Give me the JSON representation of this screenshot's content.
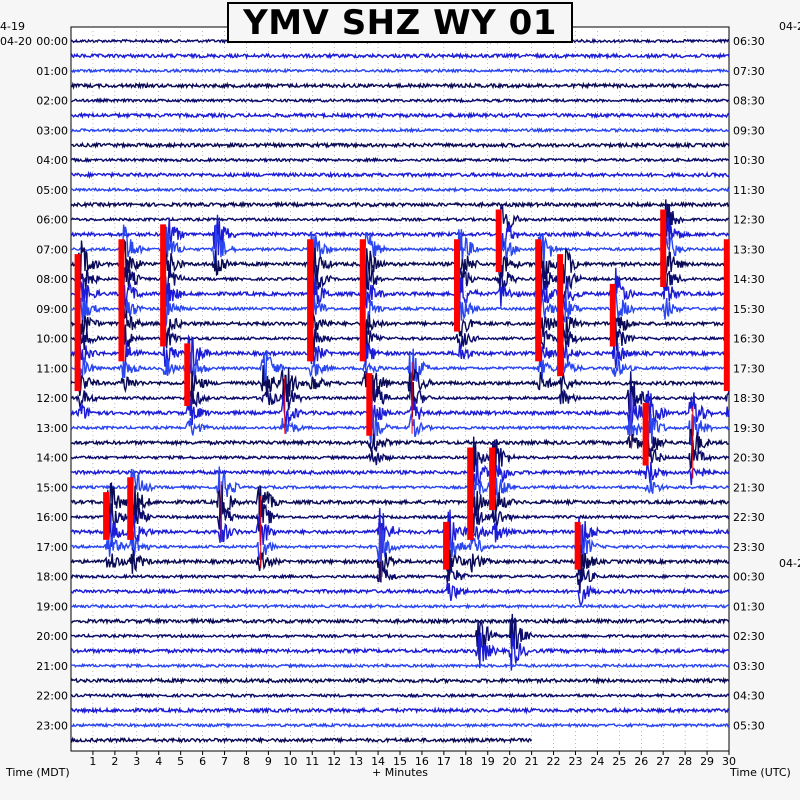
{
  "chart_data": {
    "type": "helicorder",
    "title": "YMV SHZ WY 01",
    "xlabel": "+ Minutes",
    "left_axis_label": "Time (MDT)",
    "right_axis_label": "Time (UTC)",
    "x_ticks": [
      "1",
      "2",
      "3",
      "4",
      "5",
      "6",
      "7",
      "8",
      "9",
      "10",
      "11",
      "12",
      "13",
      "14",
      "15",
      "16",
      "17",
      "18",
      "19",
      "20",
      "21",
      "22",
      "23",
      "24",
      "25",
      "26",
      "27",
      "28",
      "29",
      "30"
    ],
    "xlim": [
      0,
      30
    ],
    "left_date_labels": [
      "4-19",
      "04-20"
    ],
    "right_date_labels": [
      "04-2",
      "04-2"
    ],
    "left_hour_labels": [
      "00:00",
      "01:00",
      "02:00",
      "03:00",
      "04:00",
      "05:00",
      "06:00",
      "07:00",
      "08:00",
      "09:00",
      "10:00",
      "11:00",
      "12:00",
      "13:00",
      "14:00",
      "15:00",
      "16:00",
      "17:00",
      "18:00",
      "19:00",
      "20:00",
      "21:00",
      "22:00",
      "23:00"
    ],
    "right_hour_labels": [
      "06:30",
      "07:30",
      "08:30",
      "09:30",
      "10:30",
      "11:30",
      "12:30",
      "13:30",
      "14:30",
      "15:30",
      "16:30",
      "17:30",
      "18:30",
      "19:30",
      "20:30",
      "21:30",
      "22:30",
      "23:30",
      "00:30",
      "01:30",
      "02:30",
      "03:30",
      "04:30",
      "05:30"
    ],
    "trace_colors": [
      "#0b0b6b",
      "#1c1cd6",
      "#2a46f0",
      "#0a0a55"
    ],
    "clip_color": "#ff0000",
    "rows_per_hour": 2,
    "events": [
      {
        "minute": 0.3,
        "row_start": 15,
        "rows": 11,
        "clipped": true
      },
      {
        "minute": 2.3,
        "row_start": 14,
        "rows": 10,
        "clipped": true
      },
      {
        "minute": 4.2,
        "row_start": 13,
        "rows": 10,
        "clipped": true
      },
      {
        "minute": 10.9,
        "row_start": 14,
        "rows": 10,
        "clipped": true
      },
      {
        "minute": 13.3,
        "row_start": 14,
        "rows": 10,
        "clipped": true
      },
      {
        "minute": 17.6,
        "row_start": 14,
        "rows": 8,
        "clipped": true
      },
      {
        "minute": 19.5,
        "row_start": 12,
        "rows": 6,
        "clipped": true
      },
      {
        "minute": 21.3,
        "row_start": 14,
        "rows": 10,
        "clipped": true
      },
      {
        "minute": 22.3,
        "row_start": 15,
        "rows": 10,
        "clipped": true
      },
      {
        "minute": 27.0,
        "row_start": 12,
        "rows": 7,
        "clipped": true
      },
      {
        "minute": 29.9,
        "row_start": 14,
        "rows": 12,
        "clipped": true
      },
      {
        "minute": 24.7,
        "row_start": 17,
        "rows": 6,
        "clipped": true
      },
      {
        "minute": 26.2,
        "row_start": 25,
        "rows": 6,
        "clipped": true
      },
      {
        "minute": 18.2,
        "row_start": 28,
        "rows": 8,
        "clipped": true
      },
      {
        "minute": 19.2,
        "row_start": 28,
        "rows": 6,
        "clipped": true
      },
      {
        "minute": 2.7,
        "row_start": 30,
        "rows": 6,
        "clipped": true
      },
      {
        "minute": 1.6,
        "row_start": 31,
        "rows": 5,
        "clipped": true
      },
      {
        "minute": 17.1,
        "row_start": 33,
        "rows": 5,
        "clipped": true
      },
      {
        "minute": 23.1,
        "row_start": 33,
        "rows": 5,
        "clipped": true
      },
      {
        "minute": 5.3,
        "row_start": 21,
        "rows": 6,
        "clipped": true
      },
      {
        "minute": 13.6,
        "row_start": 23,
        "rows": 6,
        "clipped": true
      },
      {
        "minute": 9.6,
        "row_start": 23,
        "rows": 4,
        "clipped": false
      },
      {
        "minute": 15.4,
        "row_start": 22,
        "rows": 5,
        "clipped": false
      },
      {
        "minute": 14.0,
        "row_start": 33,
        "rows": 4,
        "clipped": false
      },
      {
        "minute": 8.5,
        "row_start": 31,
        "rows": 5,
        "clipped": false
      },
      {
        "minute": 6.7,
        "row_start": 30,
        "rows": 4,
        "clipped": false
      },
      {
        "minute": 20.0,
        "row_start": 40,
        "rows": 2,
        "clipped": false
      },
      {
        "minute": 18.5,
        "row_start": 40,
        "rows": 2,
        "clipped": false
      },
      {
        "minute": 8.7,
        "row_start": 22,
        "rows": 3,
        "clipped": false
      },
      {
        "minute": 6.5,
        "row_start": 13,
        "rows": 3,
        "clipped": false
      },
      {
        "minute": 25.4,
        "row_start": 24,
        "rows": 4,
        "clipped": false
      },
      {
        "minute": 28.2,
        "row_start": 25,
        "rows": 5,
        "clipped": false
      }
    ]
  }
}
